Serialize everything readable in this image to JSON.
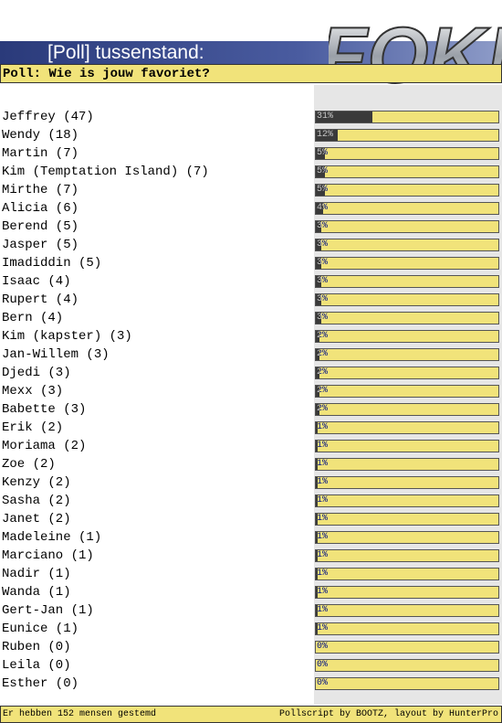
{
  "header": {
    "title": "[Poll] tussenstand:",
    "logo": "FOK!"
  },
  "poll": {
    "question": "Poll: Wie is jouw favoriet?",
    "options": [
      {
        "label": "Jeffrey (47)",
        "percent": 31,
        "percent_label": "31%"
      },
      {
        "label": "Wendy (18)",
        "percent": 12,
        "percent_label": "12%"
      },
      {
        "label": "Martin (7)",
        "percent": 5,
        "percent_label": "5%"
      },
      {
        "label": "Kim (Temptation Island) (7)",
        "percent": 5,
        "percent_label": "5%"
      },
      {
        "label": "Mirthe (7)",
        "percent": 5,
        "percent_label": "5%"
      },
      {
        "label": "Alicia (6)",
        "percent": 4,
        "percent_label": "4%"
      },
      {
        "label": "Berend (5)",
        "percent": 3,
        "percent_label": "3%"
      },
      {
        "label": "Jasper (5)",
        "percent": 3,
        "percent_label": "3%"
      },
      {
        "label": "Imadiddin (5)",
        "percent": 3,
        "percent_label": "3%"
      },
      {
        "label": "Isaac (4)",
        "percent": 3,
        "percent_label": "3%"
      },
      {
        "label": "Rupert (4)",
        "percent": 3,
        "percent_label": "3%"
      },
      {
        "label": "Bern (4)",
        "percent": 3,
        "percent_label": "3%"
      },
      {
        "label": "Kim (kapster) (3)",
        "percent": 2,
        "percent_label": "2%"
      },
      {
        "label": "Jan-Willem (3)",
        "percent": 2,
        "percent_label": "2%"
      },
      {
        "label": "Djedi (3)",
        "percent": 2,
        "percent_label": "2%"
      },
      {
        "label": "Mexx (3)",
        "percent": 2,
        "percent_label": "2%"
      },
      {
        "label": "Babette (3)",
        "percent": 2,
        "percent_label": "2%"
      },
      {
        "label": "Erik (2)",
        "percent": 1,
        "percent_label": "1%"
      },
      {
        "label": "Moriama (2)",
        "percent": 1,
        "percent_label": "1%"
      },
      {
        "label": "Zoe (2)",
        "percent": 1,
        "percent_label": "1%"
      },
      {
        "label": "Kenzy (2)",
        "percent": 1,
        "percent_label": "1%"
      },
      {
        "label": "Sasha (2)",
        "percent": 1,
        "percent_label": "1%"
      },
      {
        "label": "Janet (2)",
        "percent": 1,
        "percent_label": "1%"
      },
      {
        "label": "Madeleine (1)",
        "percent": 1,
        "percent_label": "1%"
      },
      {
        "label": "Marciano (1)",
        "percent": 1,
        "percent_label": "1%"
      },
      {
        "label": "Nadir (1)",
        "percent": 1,
        "percent_label": "1%"
      },
      {
        "label": "Wanda (1)",
        "percent": 1,
        "percent_label": "1%"
      },
      {
        "label": "Gert-Jan (1)",
        "percent": 1,
        "percent_label": "1%"
      },
      {
        "label": "Eunice (1)",
        "percent": 1,
        "percent_label": "1%"
      },
      {
        "label": "Ruben (0)",
        "percent": 0,
        "percent_label": "0%"
      },
      {
        "label": "Leila (0)",
        "percent": 0,
        "percent_label": "0%"
      },
      {
        "label": "Esther (0)",
        "percent": 0,
        "percent_label": "0%"
      }
    ]
  },
  "footer": {
    "left": "Er hebben 152 mensen gestemd",
    "right": "Pollscript by BOOTZ, layout by HunterPro"
  }
}
